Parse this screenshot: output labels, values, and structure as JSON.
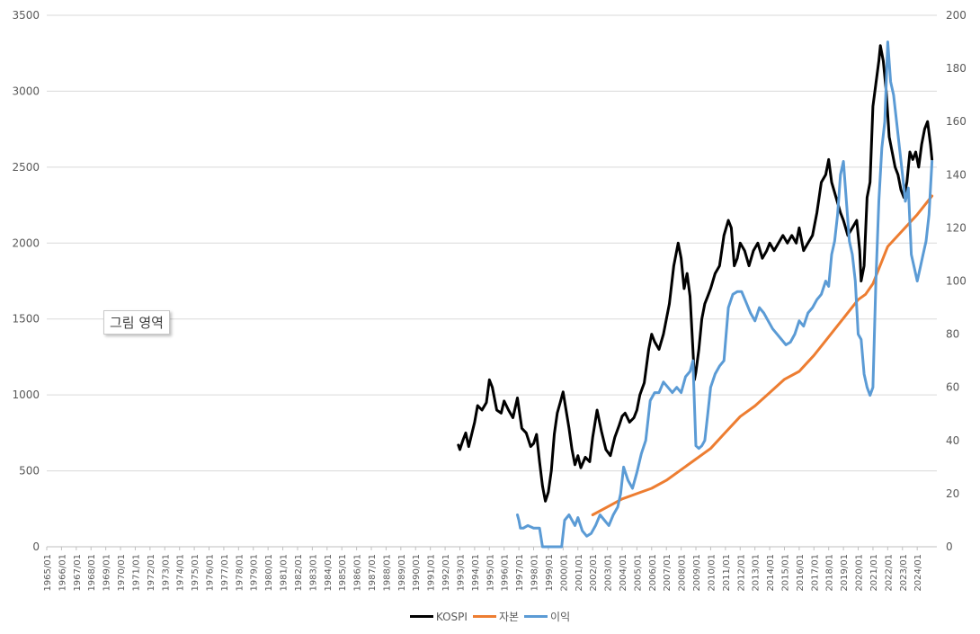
{
  "tooltip": "그림 영역",
  "chart_data": {
    "type": "line",
    "title": "",
    "xlabel": "",
    "ylabel": "",
    "y_left_ticks": [
      "0",
      "500",
      "1000",
      "1500",
      "2000",
      "2500",
      "3000",
      "3500"
    ],
    "y_right_ticks": [
      "0",
      "20",
      "40",
      "60",
      "80",
      "100",
      "120",
      "140",
      "160",
      "180",
      "200"
    ],
    "ylim_left": [
      0,
      3500
    ],
    "ylim_right": [
      0,
      200
    ],
    "x_ticks": [
      "1965/01",
      "1966/01",
      "1967/01",
      "1968/01",
      "1969/01",
      "1970/01",
      "1971/01",
      "1972/01",
      "1973/01",
      "1974/01",
      "1975/01",
      "1976/01",
      "1977/01",
      "1978/01",
      "1979/01",
      "1980/01",
      "1981/01",
      "1982/01",
      "1983/01",
      "1984/01",
      "1985/01",
      "1986/01",
      "1987/01",
      "1988/01",
      "1989/01",
      "1990/01",
      "1991/01",
      "1992/01",
      "1993/01",
      "1994/01",
      "1995/01",
      "1996/01",
      "1997/01",
      "1998/01",
      "1999/01",
      "2000/01",
      "2001/01",
      "2002/01",
      "2003/01",
      "2004/01",
      "2005/01",
      "2006/01",
      "2007/01",
      "2008/01",
      "2009/01",
      "2010/01",
      "2011/01",
      "2012/01",
      "2013/01",
      "2014/01",
      "2015/01",
      "2016/01",
      "2017/01",
      "2018/01",
      "2019/01",
      "2020/01",
      "2021/01",
      "2022/01",
      "2023/01",
      "2024/01"
    ],
    "grid": true,
    "legend_position": "bottom",
    "series": [
      {
        "name": "KOSPI",
        "axis": "left",
        "color": "#000000",
        "x": [
          1992.9,
          1993.0,
          1993.2,
          1993.4,
          1993.6,
          1993.8,
          1994.0,
          1994.2,
          1994.5,
          1994.8,
          1995.0,
          1995.2,
          1995.5,
          1995.8,
          1996.0,
          1996.3,
          1996.6,
          1996.9,
          1997.2,
          1997.5,
          1997.8,
          1998.0,
          1998.2,
          1998.4,
          1998.6,
          1998.8,
          1999.0,
          1999.2,
          1999.4,
          1999.6,
          1999.8,
          2000.0,
          2000.2,
          2000.4,
          2000.6,
          2000.8,
          2001.0,
          2001.2,
          2001.5,
          2001.8,
          2002.0,
          2002.3,
          2002.6,
          2002.9,
          2003.2,
          2003.5,
          2003.8,
          2004.0,
          2004.2,
          2004.5,
          2004.8,
          2005.0,
          2005.2,
          2005.5,
          2005.8,
          2006.0,
          2006.2,
          2006.5,
          2006.8,
          2007.0,
          2007.2,
          2007.5,
          2007.8,
          2008.0,
          2008.2,
          2008.4,
          2008.6,
          2008.8,
          2008.9,
          2009.0,
          2009.2,
          2009.4,
          2009.6,
          2009.8,
          2010.0,
          2010.3,
          2010.6,
          2010.9,
          2011.2,
          2011.4,
          2011.6,
          2011.8,
          2012.0,
          2012.3,
          2012.6,
          2012.9,
          2013.2,
          2013.5,
          2013.8,
          2014.0,
          2014.3,
          2014.6,
          2014.9,
          2015.2,
          2015.5,
          2015.8,
          2016.0,
          2016.3,
          2016.6,
          2016.9,
          2017.2,
          2017.5,
          2017.8,
          2018.0,
          2018.2,
          2018.5,
          2018.8,
          2019.0,
          2019.3,
          2019.6,
          2019.9,
          2020.1,
          2020.2,
          2020.4,
          2020.6,
          2020.8,
          2021.0,
          2021.2,
          2021.4,
          2021.5,
          2021.7,
          2021.9,
          2022.1,
          2022.3,
          2022.5,
          2022.7,
          2022.9,
          2023.1,
          2023.3,
          2023.5,
          2023.7,
          2023.9,
          2024.1,
          2024.3,
          2024.5,
          2024.7,
          2024.9,
          2025.0
        ],
        "values": [
          670,
          640,
          700,
          750,
          660,
          740,
          820,
          930,
          900,
          950,
          1100,
          1050,
          900,
          880,
          960,
          900,
          850,
          980,
          780,
          750,
          660,
          680,
          740,
          560,
          400,
          300,
          360,
          500,
          740,
          880,
          950,
          1020,
          900,
          780,
          640,
          540,
          600,
          520,
          590,
          560,
          720,
          900,
          760,
          640,
          600,
          720,
          800,
          860,
          880,
          820,
          850,
          900,
          1000,
          1080,
          1300,
          1400,
          1350,
          1300,
          1400,
          1500,
          1600,
          1850,
          2000,
          1900,
          1700,
          1800,
          1650,
          1300,
          1100,
          1150,
          1300,
          1500,
          1600,
          1650,
          1700,
          1800,
          1850,
          2050,
          2150,
          2100,
          1850,
          1900,
          2000,
          1950,
          1850,
          1950,
          2000,
          1900,
          1950,
          2000,
          1950,
          2000,
          2050,
          2000,
          2050,
          2000,
          2100,
          1950,
          2000,
          2050,
          2200,
          2400,
          2450,
          2550,
          2400,
          2300,
          2200,
          2150,
          2050,
          2100,
          2150,
          1950,
          1750,
          1850,
          2300,
          2400,
          2900,
          3050,
          3200,
          3300,
          3200,
          3000,
          2700,
          2600,
          2500,
          2450,
          2350,
          2300,
          2400,
          2600,
          2550,
          2600,
          2500,
          2650,
          2750,
          2800,
          2650,
          2550
        ]
      },
      {
        "name": "자본",
        "axis": "right",
        "color": "#ed7d31",
        "x": [
          2002.0,
          2003.0,
          2004.0,
          2005.0,
          2006.0,
          2007.0,
          2008.0,
          2009.0,
          2010.0,
          2011.0,
          2012.0,
          2013.0,
          2014.0,
          2015.0,
          2016.0,
          2017.0,
          2018.0,
          2019.0,
          2020.0,
          2020.5,
          2021.0,
          2022.0,
          2023.0,
          2024.0,
          2025.0
        ],
        "values": [
          12,
          15,
          18,
          20,
          22,
          25,
          29,
          33,
          37,
          43,
          49,
          53,
          58,
          63,
          66,
          72,
          79,
          86,
          93,
          95,
          99,
          113,
          119,
          125,
          132
        ]
      },
      {
        "name": "이익",
        "axis": "right",
        "color": "#5b9bd5",
        "x": [
          1996.9,
          1997.0,
          1997.1,
          1997.3,
          1997.6,
          1998.0,
          1998.4,
          1998.6,
          1998.8,
          1999.2,
          1999.6,
          1999.9,
          2000.1,
          2000.4,
          2000.8,
          2001.0,
          2001.3,
          2001.6,
          2001.9,
          2002.2,
          2002.5,
          2002.8,
          2003.1,
          2003.4,
          2003.7,
          2003.9,
          2004.1,
          2004.4,
          2004.7,
          2005.0,
          2005.3,
          2005.6,
          2005.9,
          2006.2,
          2006.5,
          2006.8,
          2007.1,
          2007.4,
          2007.7,
          2008.0,
          2008.3,
          2008.6,
          2008.8,
          2009.0,
          2009.2,
          2009.4,
          2009.6,
          2009.8,
          2010.0,
          2010.3,
          2010.6,
          2010.9,
          2011.2,
          2011.5,
          2011.8,
          2012.1,
          2012.4,
          2012.7,
          2013.0,
          2013.3,
          2013.6,
          2013.9,
          2014.2,
          2014.5,
          2014.8,
          2015.1,
          2015.4,
          2015.7,
          2016.0,
          2016.3,
          2016.6,
          2016.9,
          2017.2,
          2017.5,
          2017.8,
          2018.0,
          2018.2,
          2018.4,
          2018.6,
          2018.8,
          2019.0,
          2019.2,
          2019.4,
          2019.6,
          2019.8,
          2020.0,
          2020.2,
          2020.4,
          2020.6,
          2020.8,
          2021.0,
          2021.2,
          2021.4,
          2021.6,
          2021.8,
          2022.0,
          2022.2,
          2022.4,
          2022.6,
          2022.8,
          2023.0,
          2023.2,
          2023.4,
          2023.6,
          2023.8,
          2024.0,
          2024.2,
          2024.4,
          2024.6,
          2024.8,
          2025.0
        ],
        "values": [
          12,
          10,
          7,
          7,
          8,
          7,
          7,
          0,
          0,
          0,
          0,
          0,
          10,
          12,
          8,
          11,
          6,
          4,
          5,
          8,
          12,
          10,
          8,
          12,
          15,
          20,
          30,
          25,
          22,
          28,
          35,
          40,
          55,
          58,
          58,
          62,
          60,
          58,
          60,
          58,
          64,
          66,
          70,
          38,
          37,
          38,
          40,
          50,
          60,
          65,
          68,
          70,
          90,
          95,
          96,
          96,
          92,
          88,
          85,
          90,
          88,
          85,
          82,
          80,
          78,
          76,
          77,
          80,
          85,
          83,
          88,
          90,
          93,
          95,
          100,
          98,
          110,
          115,
          125,
          140,
          145,
          130,
          115,
          110,
          100,
          80,
          78,
          65,
          60,
          57,
          60,
          100,
          130,
          150,
          160,
          190,
          175,
          170,
          160,
          150,
          140,
          130,
          135,
          110,
          105,
          100,
          105,
          110,
          115,
          125,
          145
        ]
      }
    ]
  }
}
